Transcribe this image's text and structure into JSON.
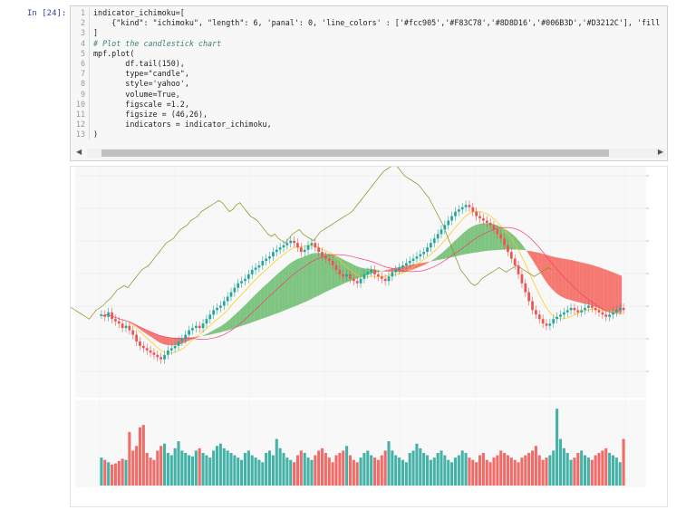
{
  "cell": {
    "prompt": "In [24]:",
    "lines": [
      {
        "n": "1",
        "text": "indicator_ichimoku=["
      },
      {
        "n": "2",
        "text": "    {\"kind\": \"ichimoku\", \"length\": 6, 'panal': 0, 'line_colors' : ['#fcc905','#F83C78','#8D8D16','#006B3D','#D3212C'], 'fill"
      },
      {
        "n": "3",
        "text": "]"
      },
      {
        "n": "4",
        "text": "# Plot the candlestick chart"
      },
      {
        "n": "5",
        "text": "mpf.plot("
      },
      {
        "n": "6",
        "text": "       df.tail(150),"
      },
      {
        "n": "7",
        "text": "       type=\"candle\","
      },
      {
        "n": "8",
        "text": "       style='yahoo',"
      },
      {
        "n": "9",
        "text": "       volume=True,"
      },
      {
        "n": "10",
        "text": "       figscale =1.2,"
      },
      {
        "n": "11",
        "text": "       figsize = (46,26),"
      },
      {
        "n": "12",
        "text": "       indicators = indicator_ichimoku,"
      },
      {
        "n": "13",
        "text": ")"
      }
    ]
  },
  "chart_data": {
    "type": "candlestick",
    "panels": [
      "price",
      "volume"
    ],
    "candles": 150,
    "colors": {
      "up": "#26a69a",
      "down": "#ef5350",
      "tenkan": "#fcc905",
      "kijun": "#F83C78",
      "chikou": "#8D8D16",
      "span_up_fill": "#4caf50",
      "span_down_fill": "#f44336"
    },
    "price_series": [
      42,
      41,
      43,
      40,
      39,
      38,
      36,
      37,
      35,
      33,
      30,
      28,
      27,
      26,
      25,
      24,
      23,
      22,
      24,
      26,
      27,
      28,
      30,
      31,
      33,
      35,
      36,
      37,
      36,
      38,
      40,
      42,
      44,
      45,
      46,
      48,
      50,
      52,
      54,
      56,
      57,
      58,
      60,
      62,
      63,
      64,
      66,
      67,
      68,
      70,
      71,
      72,
      73,
      74,
      75,
      74,
      72,
      70,
      71,
      73,
      74,
      72,
      70,
      68,
      67,
      66,
      64,
      62,
      60,
      59,
      60,
      58,
      57,
      56,
      58,
      60,
      61,
      62,
      60,
      59,
      58,
      57,
      59,
      61,
      62,
      63,
      64,
      65,
      66,
      67,
      68,
      69,
      70,
      72,
      74,
      76,
      78,
      80,
      82,
      84,
      86,
      88,
      89,
      90,
      91,
      90,
      88,
      86,
      85,
      84,
      83,
      82,
      80,
      78,
      76,
      73,
      70,
      67,
      64,
      60,
      56,
      52,
      48,
      44,
      42,
      40,
      38,
      37,
      38,
      40,
      41,
      42,
      43,
      44,
      45,
      44,
      43,
      44,
      45,
      46,
      45,
      44,
      43,
      42,
      41,
      42,
      43,
      44,
      45,
      44
    ],
    "volume": [
      24,
      22,
      20,
      18,
      19,
      21,
      23,
      22,
      46,
      30,
      34,
      50,
      52,
      28,
      24,
      22,
      30,
      34,
      36,
      28,
      26,
      32,
      38,
      30,
      28,
      26,
      25,
      30,
      32,
      28,
      26,
      24,
      30,
      34,
      36,
      32,
      30,
      28,
      26,
      24,
      22,
      28,
      30,
      26,
      24,
      22,
      20,
      28,
      30,
      26,
      40,
      32,
      28,
      24,
      22,
      20,
      26,
      30,
      28,
      24,
      22,
      26,
      30,
      32,
      28,
      24,
      20,
      26,
      28,
      30,
      34,
      26,
      22,
      20,
      24,
      28,
      30,
      26,
      24,
      22,
      26,
      30,
      38,
      30,
      26,
      24,
      22,
      20,
      28,
      30,
      36,
      32,
      28,
      26,
      22,
      24,
      28,
      30,
      26,
      22,
      20,
      24,
      26,
      30,
      28,
      24,
      22,
      20,
      26,
      28,
      22,
      20,
      24,
      26,
      30,
      28,
      26,
      24,
      22,
      20,
      24,
      26,
      28,
      30,
      34,
      26,
      22,
      24,
      26,
      30,
      66,
      40,
      32,
      28,
      22,
      24,
      28,
      30,
      26,
      24,
      22,
      26,
      28,
      30,
      32,
      28,
      26,
      24,
      20,
      40
    ]
  }
}
